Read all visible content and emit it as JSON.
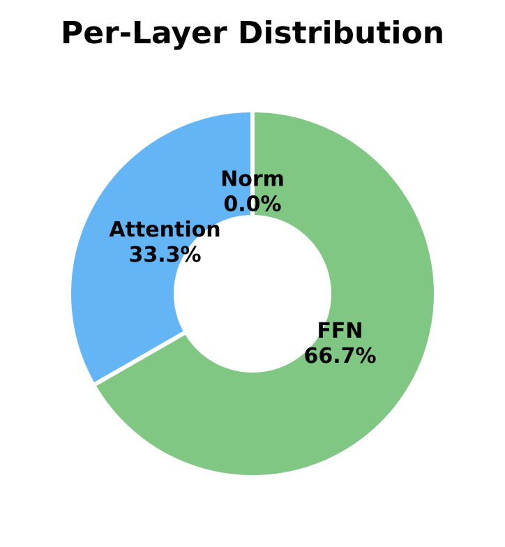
{
  "chart_data": {
    "type": "donut",
    "title": "Per-Layer Distribution",
    "categories": [
      "FFN",
      "Attention",
      "Norm"
    ],
    "values": [
      66.7,
      33.3,
      0.0
    ],
    "value_labels": [
      "66.7%",
      "33.3%",
      "0.0%"
    ],
    "colors": [
      "#81c784",
      "#64b5f6",
      "#ffb74d"
    ]
  }
}
